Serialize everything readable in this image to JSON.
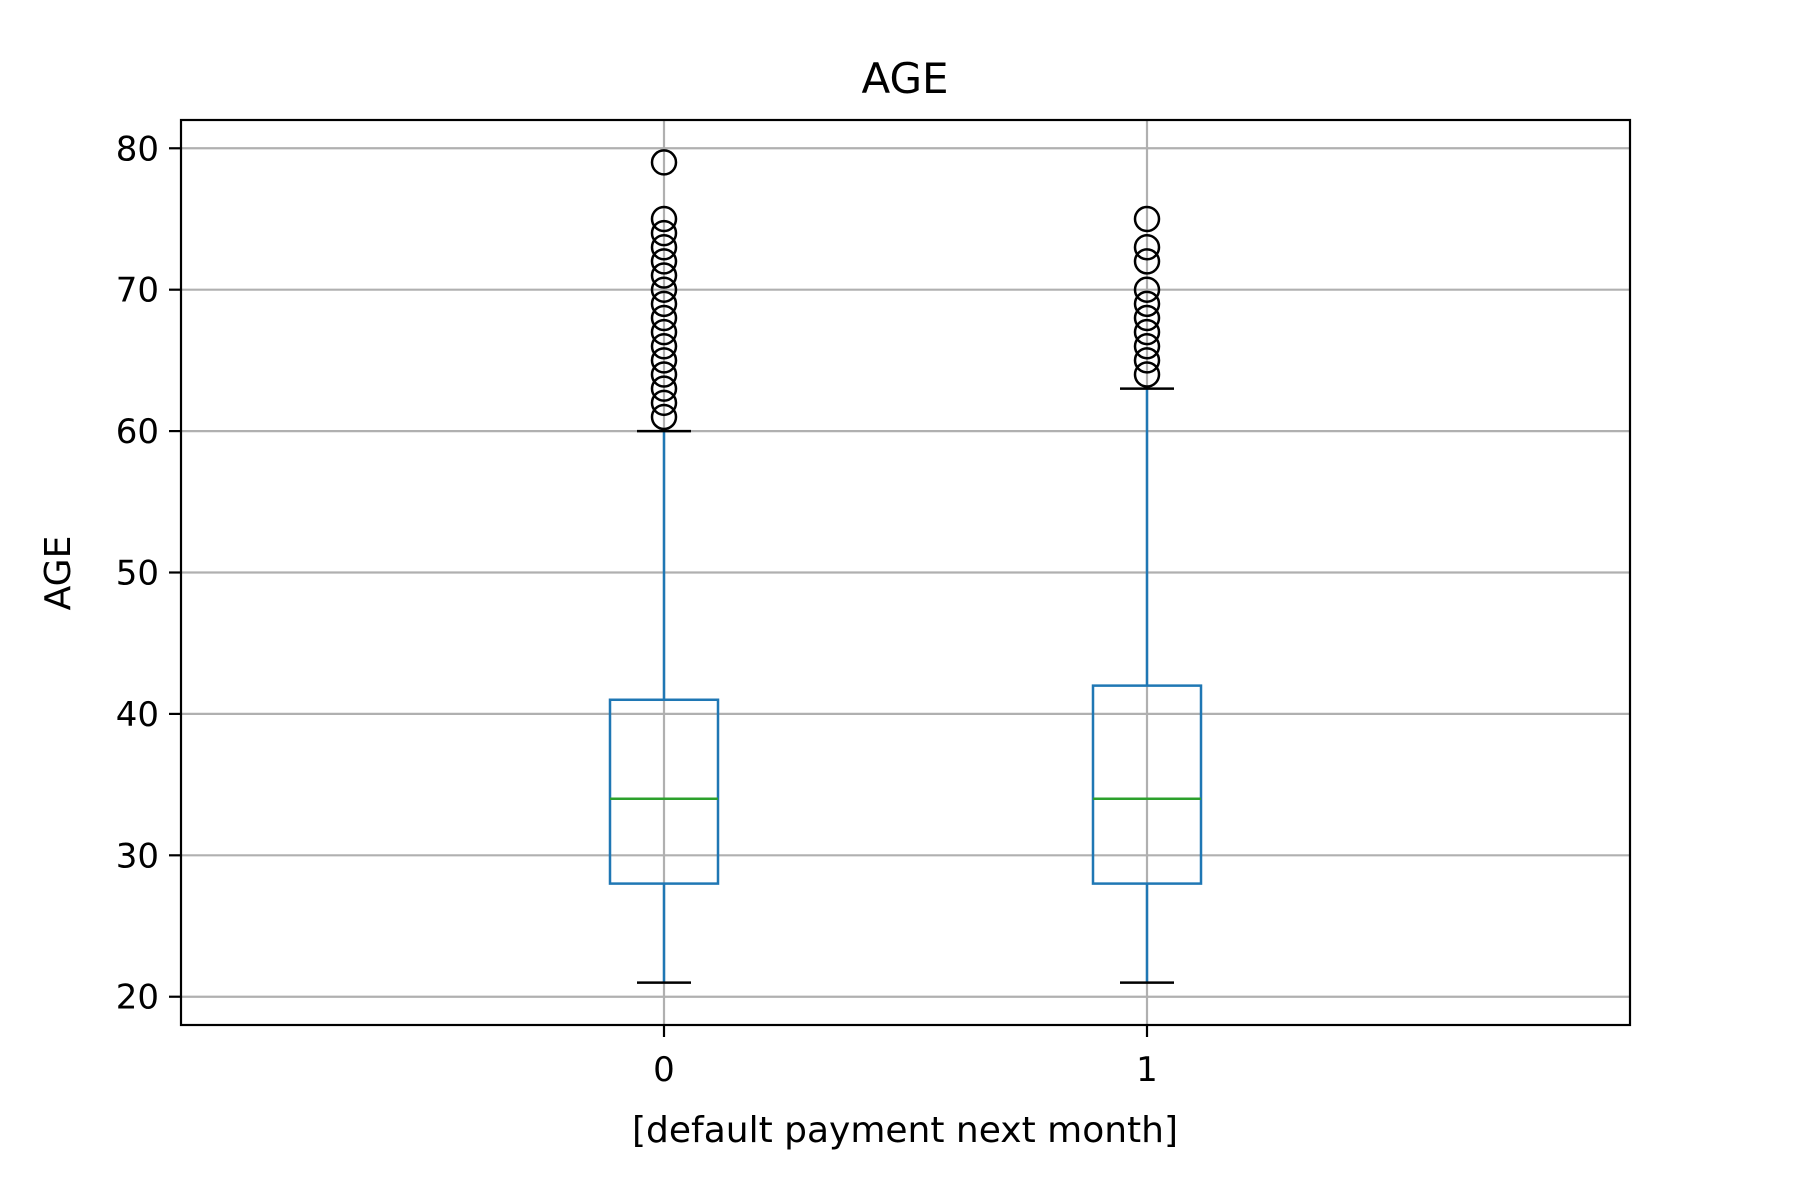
{
  "chart_data": {
    "type": "box",
    "title": "AGE",
    "xlabel": "[default payment next month]",
    "ylabel": "AGE",
    "ylim": [
      18,
      82
    ],
    "yticks": [
      20,
      30,
      40,
      50,
      60,
      70,
      80
    ],
    "grid": true,
    "categories": [
      "0",
      "1"
    ],
    "boxes": [
      {
        "category": "0",
        "whisker_low": 21,
        "q1": 28,
        "median": 34,
        "q3": 41,
        "whisker_high": 60,
        "fliers": [
          61,
          62,
          63,
          64,
          65,
          66,
          67,
          68,
          69,
          70,
          71,
          72,
          73,
          74,
          75,
          79
        ]
      },
      {
        "category": "1",
        "whisker_low": 21,
        "q1": 28,
        "median": 34,
        "q3": 42,
        "whisker_high": 63,
        "fliers": [
          64,
          65,
          66,
          67,
          68,
          69,
          70,
          72,
          73,
          75
        ]
      }
    ],
    "colors": {
      "box": "#1f77b4",
      "median": "#2ca02c",
      "cap": "#000000",
      "flier": "#000000",
      "grid": "#b0b0b0"
    }
  }
}
